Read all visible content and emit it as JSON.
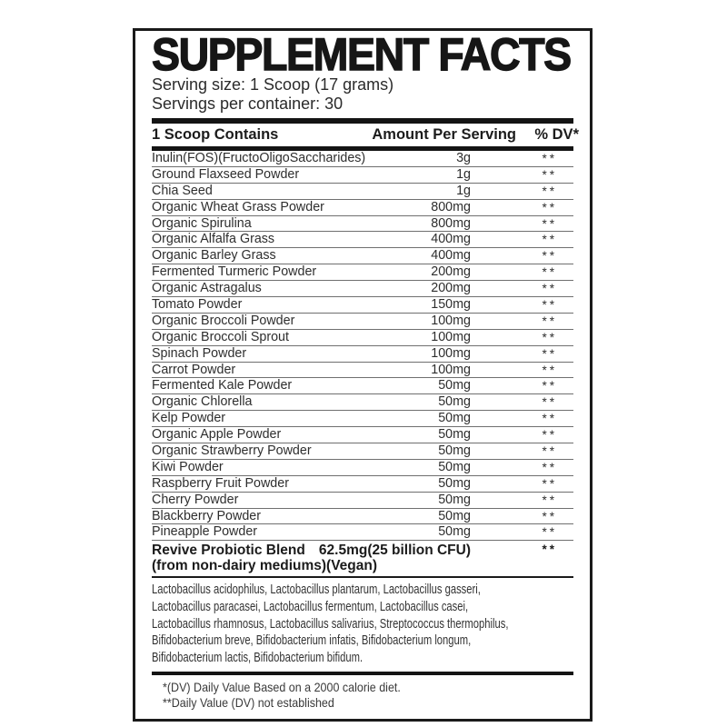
{
  "label": {
    "title": "SUPPLEMENT FACTS",
    "serving_size": "Serving size: 1 Scoop (17 grams)",
    "servings_per_container": "Servings per container: 30",
    "columns": {
      "ingredient": "1 Scoop Contains",
      "amount": "Amount Per Serving",
      "dv": "% DV*"
    },
    "rows": [
      {
        "name": "Inulin(FOS)(FructoOligoSaccharides)",
        "amount": "3g",
        "dv": "**"
      },
      {
        "name": "Ground Flaxseed Powder",
        "amount": "1g",
        "dv": "**"
      },
      {
        "name": "Chia Seed",
        "amount": "1g",
        "dv": "**"
      },
      {
        "name": "Organic Wheat Grass Powder",
        "amount": "800mg",
        "dv": "**"
      },
      {
        "name": "Organic Spirulina",
        "amount": "800mg",
        "dv": "**"
      },
      {
        "name": "Organic Alfalfa Grass",
        "amount": "400mg",
        "dv": "**"
      },
      {
        "name": "Organic Barley Grass",
        "amount": "400mg",
        "dv": "**"
      },
      {
        "name": "Fermented Turmeric Powder",
        "amount": "200mg",
        "dv": "**"
      },
      {
        "name": "Organic Astragalus",
        "amount": "200mg",
        "dv": "**"
      },
      {
        "name": "Tomato Powder",
        "amount": "150mg",
        "dv": "**"
      },
      {
        "name": "Organic Broccoli Powder",
        "amount": "100mg",
        "dv": "**"
      },
      {
        "name": "Organic Broccoli Sprout",
        "amount": "100mg",
        "dv": "**"
      },
      {
        "name": "Spinach Powder",
        "amount": "100mg",
        "dv": "**"
      },
      {
        "name": "Carrot Powder",
        "amount": "100mg",
        "dv": "**"
      },
      {
        "name": "Fermented Kale Powder",
        "amount": "50mg",
        "dv": "**"
      },
      {
        "name": "Organic Chlorella",
        "amount": "50mg",
        "dv": "**"
      },
      {
        "name": "Kelp Powder",
        "amount": "50mg",
        "dv": "**"
      },
      {
        "name": "Organic Apple Powder",
        "amount": "50mg",
        "dv": "**"
      },
      {
        "name": "Organic Strawberry Powder",
        "amount": "50mg",
        "dv": "**"
      },
      {
        "name": "Kiwi Powder",
        "amount": "50mg",
        "dv": "**"
      },
      {
        "name": "Raspberry Fruit Powder",
        "amount": "50mg",
        "dv": "**"
      },
      {
        "name": "Cherry Powder",
        "amount": "50mg",
        "dv": "**"
      },
      {
        "name": "Blackberry Powder",
        "amount": "50mg",
        "dv": "**"
      },
      {
        "name": "Pineapple Powder",
        "amount": "50mg",
        "dv": "**"
      }
    ],
    "blend": {
      "name": "Revive Probiotic Blend",
      "subname": "(from non-dairy mediums)(Vegan)",
      "amount": "62.5mg(25 billion CFU)",
      "dv": "**"
    },
    "probiotic_strains_lines": [
      "Lactobacillus acidophilus, Lactobacillus plantarum, Lactobacillus gasseri,",
      "Lactobacillus paracasei, Lactobacillus fermentum, Lactobacillus casei,",
      "Lactobacillus rhamnosus, Lactobacillus salivarius, Streptococcus thermophilus,",
      "Bifidobacterium breve, Bifidobacterium infatis, Bifidobacterium longum,",
      "Bifidobacterium lactis, Bifidobacterium bifidum."
    ],
    "footnotes": [
      "*(DV) Daily Value Based on a 2000 calorie diet.",
      "**Daily Value (DV) not established"
    ]
  },
  "colors": {
    "background": "#ffffff",
    "panel_border": "#1a1a1a",
    "bar": "#141414",
    "rule": "#6f6f6f",
    "text": "#2e2e2e"
  }
}
